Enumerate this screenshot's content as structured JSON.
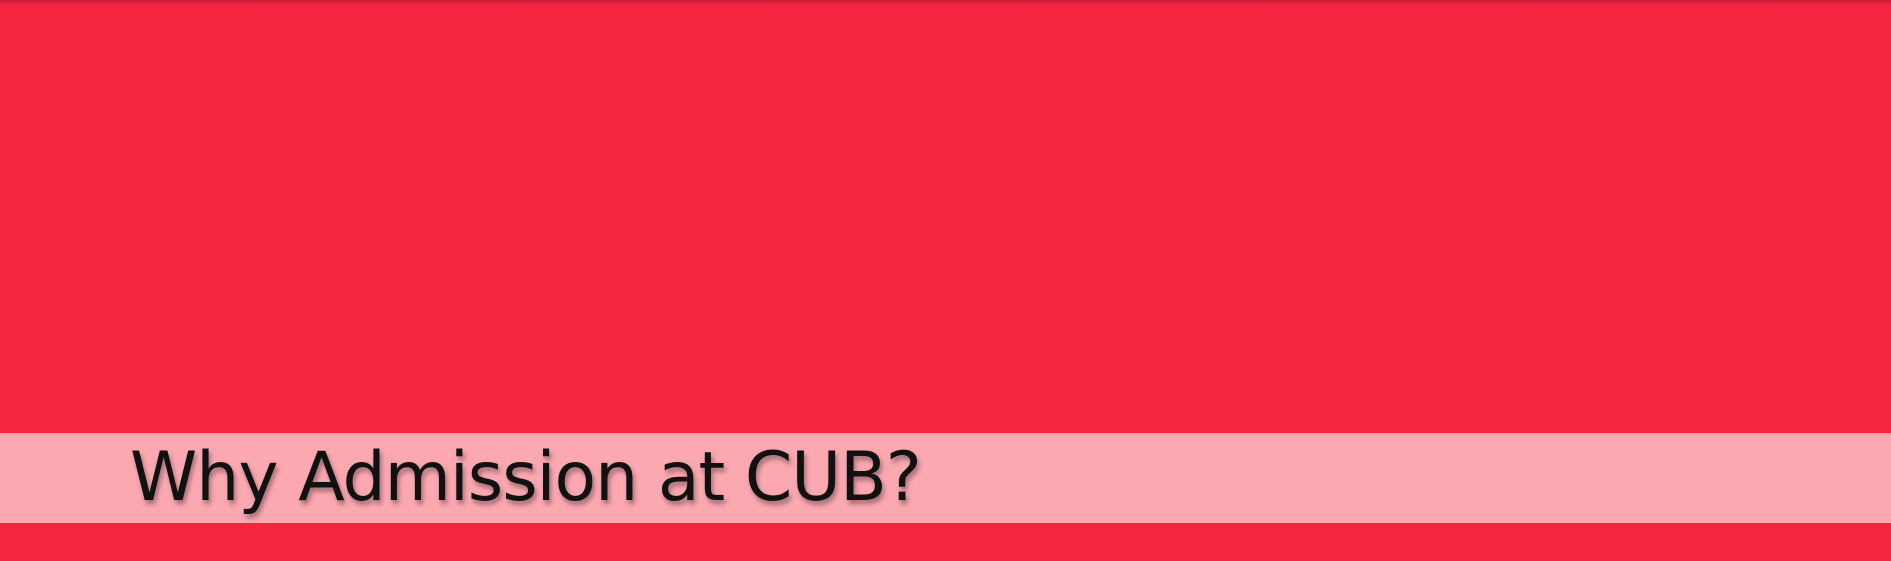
{
  "colors": {
    "primary_red": "#f4253f",
    "band_pink": "#fba8b1",
    "title_text": "#111111"
  },
  "banner": {
    "title": "Why Admission at CUB?"
  }
}
